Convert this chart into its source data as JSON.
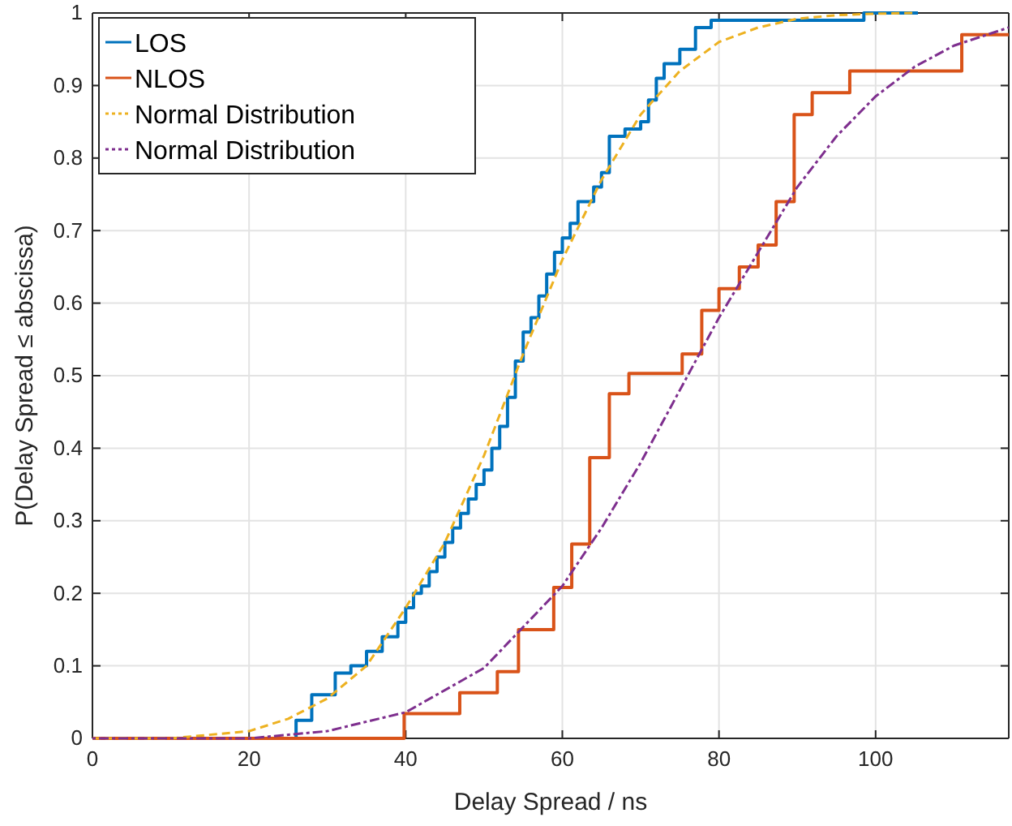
{
  "chart_data": {
    "type": "line",
    "xlabel": "Delay Spread / ns",
    "ylabel": "P(Delay Spread ≤ abscissa)",
    "xlim": [
      0,
      117
    ],
    "ylim": [
      0,
      1
    ],
    "xticks": [
      0,
      20,
      40,
      60,
      80,
      100
    ],
    "yticks": [
      0,
      0.1,
      0.2,
      0.3,
      0.4,
      0.5,
      0.6,
      0.7,
      0.8,
      0.9,
      1
    ],
    "grid": true,
    "legend": "top left",
    "series": [
      {
        "name": "LOS",
        "type": "step",
        "color": "#0072bd",
        "line_style": "solid",
        "x": [
          0,
          26,
          28,
          31,
          33,
          35,
          37,
          39,
          40,
          41,
          42,
          43,
          44,
          45,
          46,
          47,
          48,
          49,
          50,
          51,
          52,
          53,
          54,
          55,
          56,
          57,
          58,
          59,
          60,
          61,
          62,
          64,
          65,
          66,
          68,
          70,
          71,
          72,
          73,
          75,
          77,
          79,
          98.5,
          105.4
        ],
        "values": [
          0,
          0.025,
          0.06,
          0.09,
          0.1,
          0.12,
          0.14,
          0.16,
          0.18,
          0.2,
          0.21,
          0.23,
          0.25,
          0.27,
          0.29,
          0.31,
          0.33,
          0.35,
          0.37,
          0.4,
          0.43,
          0.47,
          0.52,
          0.56,
          0.58,
          0.61,
          0.64,
          0.67,
          0.69,
          0.71,
          0.74,
          0.76,
          0.78,
          0.83,
          0.84,
          0.85,
          0.88,
          0.91,
          0.93,
          0.95,
          0.98,
          0.99,
          1,
          1
        ]
      },
      {
        "name": "NLOS",
        "type": "step",
        "color": "#d95319",
        "line_style": "solid",
        "x": [
          0,
          39.8,
          46.9,
          51.7,
          54.4,
          58.9,
          61.2,
          63.5,
          66,
          68.5,
          75.3,
          77.8,
          80,
          82.6,
          85,
          87.3,
          89.6,
          91.9,
          96.7,
          111,
          117
        ],
        "values": [
          0,
          0.034,
          0.063,
          0.092,
          0.15,
          0.208,
          0.268,
          0.387,
          0.475,
          0.503,
          0.53,
          0.59,
          0.62,
          0.65,
          0.68,
          0.74,
          0.86,
          0.89,
          0.92,
          0.97,
          0.97
        ]
      },
      {
        "name": "Normal Distribution",
        "color": "#edb120",
        "line_style": "dashed",
        "x": [
          0,
          10,
          20,
          25,
          30,
          35,
          40,
          45,
          50,
          55,
          60,
          65,
          70,
          75,
          80,
          85,
          90,
          95,
          100,
          105
        ],
        "values": [
          0,
          0,
          0.01,
          0.027,
          0.055,
          0.1,
          0.18,
          0.27,
          0.39,
          0.53,
          0.66,
          0.77,
          0.86,
          0.92,
          0.96,
          0.98,
          0.992,
          0.997,
          0.999,
          1
        ]
      },
      {
        "name": "Normal Distribution",
        "color": "#7e2f8e",
        "line_style": "dotted",
        "x": [
          0,
          10,
          20,
          30,
          40,
          50,
          60,
          65,
          70,
          75,
          80,
          85,
          90,
          95,
          100,
          105,
          110,
          117
        ],
        "values": [
          0,
          0,
          0,
          0.01,
          0.036,
          0.097,
          0.21,
          0.29,
          0.38,
          0.48,
          0.58,
          0.67,
          0.76,
          0.83,
          0.885,
          0.926,
          0.955,
          0.98
        ]
      }
    ]
  }
}
